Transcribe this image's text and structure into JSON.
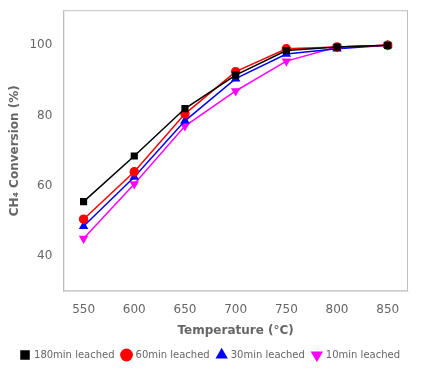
{
  "chart_data": {
    "type": "line",
    "xlabel": "Temperature (°C)",
    "ylabel": "CH₄ Conversion (%)",
    "x": [
      550,
      600,
      650,
      700,
      750,
      800,
      850
    ],
    "xlim": [
      530,
      870
    ],
    "ylim": [
      30,
      110
    ],
    "xticks": [
      550,
      600,
      650,
      700,
      750,
      800,
      850
    ],
    "yticks": [
      40,
      60,
      80,
      100
    ],
    "grid": false,
    "legend": "lower right",
    "series": [
      {
        "name": "180min leached",
        "color": "#000000",
        "marker": "square",
        "values": [
          55.5,
          68.5,
          82.0,
          91.5,
          98.5,
          99.5,
          100.0
        ]
      },
      {
        "name": "60min leached",
        "color": "#ff0000",
        "marker": "circle",
        "values": [
          50.5,
          64.0,
          80.5,
          92.5,
          99.0,
          99.5,
          100.0
        ]
      },
      {
        "name": "30min leached",
        "color": "#0000ff",
        "marker": "triangle-up",
        "values": [
          48.5,
          62.5,
          78.5,
          90.5,
          97.5,
          99.0,
          100.0
        ]
      },
      {
        "name": "10min leached",
        "color": "#ff00ff",
        "marker": "triangle-down",
        "values": [
          45.0,
          60.5,
          77.0,
          87.0,
          95.5,
          99.5,
          100.0
        ]
      }
    ]
  }
}
